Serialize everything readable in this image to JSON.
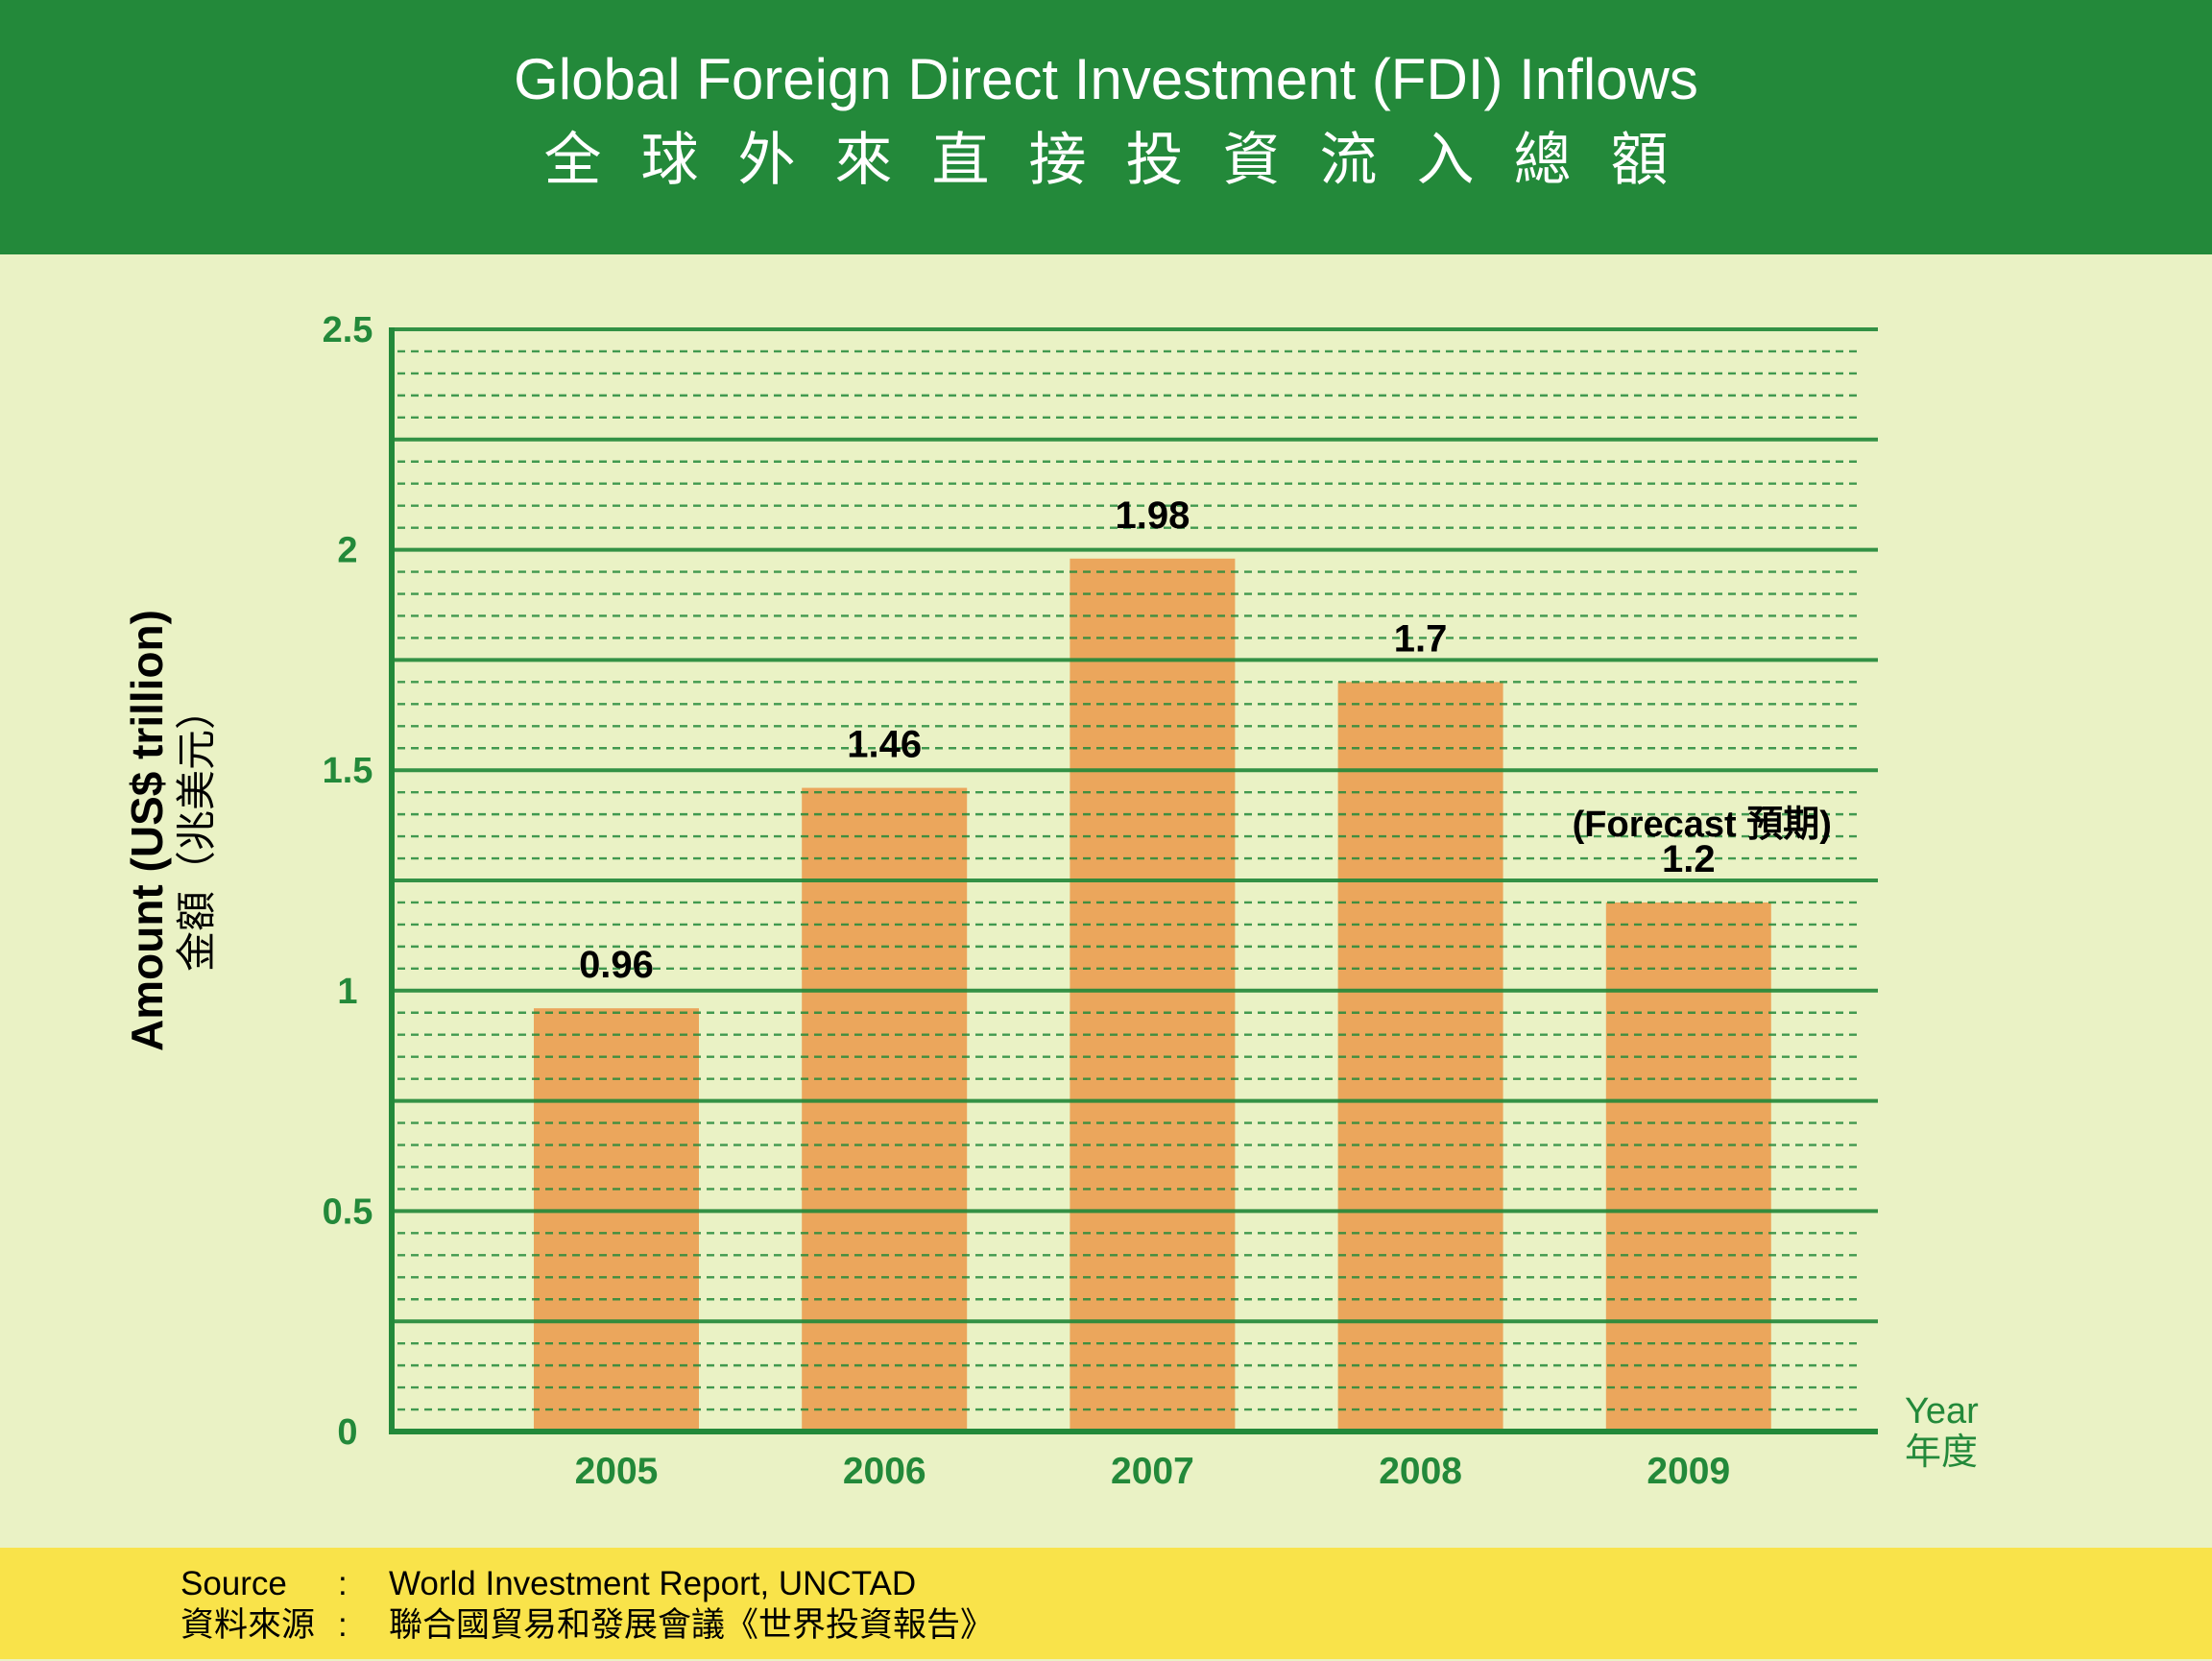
{
  "header": {
    "title_en": "Global Foreign Direct Investment (FDI) Inflows",
    "title_zh": "全球外來直接投資流入總額"
  },
  "colors": {
    "header_bg": "#23893A",
    "plot_bg": "#EAF2C5",
    "bar": "#EBA65C",
    "grid": "#23893A",
    "source_bg": "#F9E34A",
    "label_text": "#000000"
  },
  "chart_data": {
    "type": "bar",
    "title": "Global Foreign Direct Investment (FDI) Inflows",
    "subtitle": "全球外來直接投資流入總額",
    "categories": [
      "2005",
      "2006",
      "2007",
      "2008",
      "2009"
    ],
    "values": [
      0.96,
      1.46,
      1.98,
      1.7,
      1.2
    ],
    "data_labels": [
      "0.96",
      "1.46",
      "1.98",
      "1.7",
      "1.2"
    ],
    "annotations": [
      {
        "category": "2009",
        "text": "(Forecast 預期)"
      }
    ],
    "xlabel": "Year",
    "xlabel_zh": "年度",
    "ylabel": "Amount (US$ trillion)",
    "ylabel_zh": "金額（兆美元）",
    "ylim": [
      0,
      2.5
    ],
    "yticks": [
      0,
      0.5,
      1,
      1.5,
      2,
      2.5
    ],
    "ytick_labels": [
      "0",
      "0.5",
      "1",
      "1.5",
      "2",
      "2.5"
    ],
    "major_grid_step": 0.25,
    "minor_grid_step": 0.05,
    "grid": true,
    "legend": "none"
  },
  "source": {
    "label_en": "Source",
    "label_zh": "資料來源",
    "separator": ":",
    "value_en": "World Investment Report, UNCTAD",
    "value_zh": "聯合國貿易和發展會議《世界投資報告》"
  }
}
